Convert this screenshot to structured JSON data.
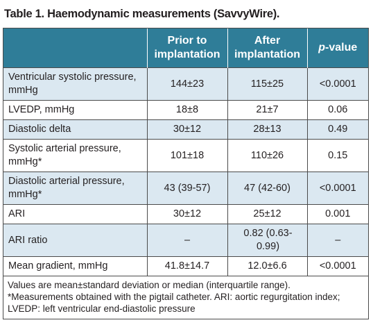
{
  "title": "Table 1. Haemodynamic measurements (SavvyWire).",
  "table": {
    "header": [
      "",
      "Prior to implantation",
      "After implantation",
      {
        "italic": "p",
        "rest": "-value"
      }
    ],
    "rows": [
      [
        "Ventricular systolic pressure, mmHg",
        "144±23",
        "115±25",
        "<0.0001"
      ],
      [
        "LVEDP, mmHg",
        "18±8",
        "21±7",
        "0.06"
      ],
      [
        "Diastolic delta",
        "30±12",
        "28±13",
        "0.49"
      ],
      [
        "Systolic arterial pressure, mmHg*",
        "101±18",
        "110±26",
        "0.15"
      ],
      [
        "Diastolic arterial pressure, mmHg*",
        "43 (39-57)",
        "47 (42-60)",
        "<0.0001"
      ],
      [
        "ARI",
        "30±12",
        "25±12",
        "0.001"
      ],
      [
        "ARI ratio",
        "–",
        "0.82 (0.63-0.99)",
        "–"
      ],
      [
        "Mean gradient, mmHg",
        "41.8±14.7",
        "12.0±6.6",
        "<0.0001"
      ]
    ],
    "footnotes": [
      "Values are mean±standard deviation or median (interquartile range).",
      "*Measurements obtained with the pigtail catheter. ARI: aortic regurgitation index; LVEDP: left ventricular end-diastolic pressure"
    ]
  }
}
